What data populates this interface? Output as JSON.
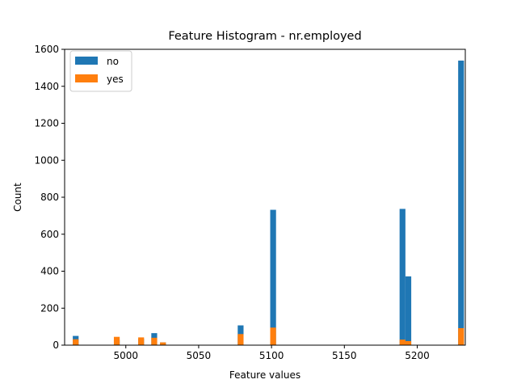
{
  "chart_data": {
    "type": "bar",
    "title": "Feature Histogram - nr.employed",
    "xlabel": "Feature values",
    "ylabel": "Count",
    "xlim": [
      4958,
      5233
    ],
    "ylim": [
      0,
      1600
    ],
    "xticks": [
      5000,
      5050,
      5100,
      5150,
      5200
    ],
    "yticks": [
      0,
      200,
      400,
      600,
      800,
      1000,
      1200,
      1400,
      1600
    ],
    "bin_width": 4.0,
    "legend": "top-left",
    "grid": false,
    "series": [
      {
        "name": "no",
        "color": "#1f77b4",
        "bins": [
          {
            "x": 4963.6,
            "value": 50
          },
          {
            "x": 4991.8,
            "value": 28
          },
          {
            "x": 5008.5,
            "value": 35
          },
          {
            "x": 5017.5,
            "value": 65
          },
          {
            "x": 5023.5,
            "value": 15
          },
          {
            "x": 5076.8,
            "value": 107
          },
          {
            "x": 5099.1,
            "value": 732
          },
          {
            "x": 5187.9,
            "value": 737
          },
          {
            "x": 5191.9,
            "value": 372
          },
          {
            "x": 5228.1,
            "value": 1539
          }
        ]
      },
      {
        "name": "yes",
        "color": "#ff7f0e",
        "bins": [
          {
            "x": 4963.6,
            "value": 32
          },
          {
            "x": 4991.8,
            "value": 45
          },
          {
            "x": 5008.5,
            "value": 42
          },
          {
            "x": 5017.5,
            "value": 40
          },
          {
            "x": 5023.5,
            "value": 15
          },
          {
            "x": 5076.8,
            "value": 60
          },
          {
            "x": 5099.1,
            "value": 95
          },
          {
            "x": 5187.9,
            "value": 30
          },
          {
            "x": 5191.9,
            "value": 22
          },
          {
            "x": 5228.1,
            "value": 92
          }
        ]
      }
    ]
  }
}
